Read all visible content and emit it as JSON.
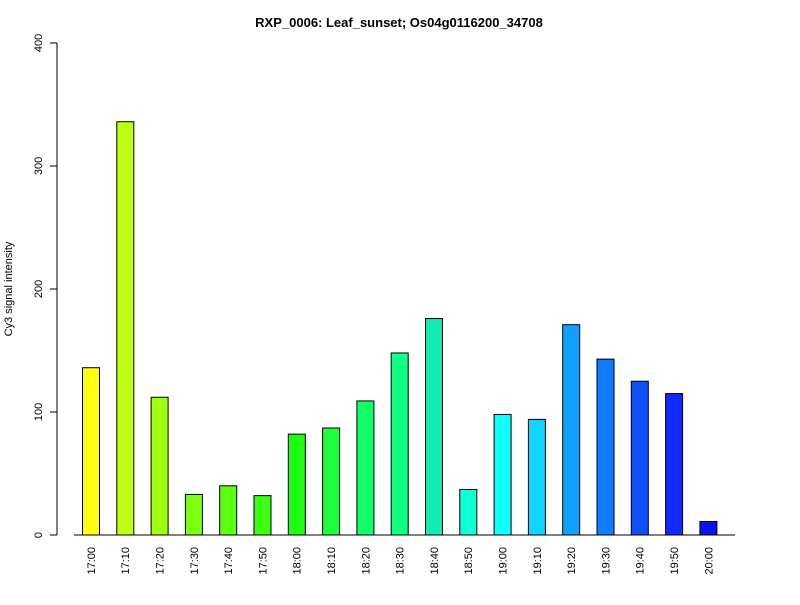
{
  "chart_data": {
    "type": "bar",
    "title": "RXP_0006: Leaf_sunset; Os04g0116200_34708",
    "xlabel": "",
    "ylabel": "Cy3 signal intensity",
    "ylim": [
      0,
      400
    ],
    "yticks": [
      0,
      100,
      200,
      300,
      400
    ],
    "grid": false,
    "legend": "none",
    "categories": [
      "17:00",
      "17:10",
      "17:20",
      "17:30",
      "17:40",
      "17:50",
      "18:00",
      "18:10",
      "18:20",
      "18:30",
      "18:40",
      "18:50",
      "19:00",
      "19:10",
      "19:20",
      "19:30",
      "19:40",
      "19:50",
      "20:00"
    ],
    "values": [
      136,
      336,
      112,
      33,
      40,
      32,
      82,
      87,
      109,
      148,
      176,
      37,
      98,
      94,
      171,
      143,
      125,
      115,
      11
    ],
    "colors": [
      "#ffff11",
      "#bfff11",
      "#a0ff11",
      "#7cff11",
      "#5cff11",
      "#3cff11",
      "#1cff11",
      "#1cff3a",
      "#11ff68",
      "#11ff82",
      "#11ecb0",
      "#11ffd4",
      "#11ffff",
      "#11d4ff",
      "#11a0ff",
      "#117cff",
      "#1150ff",
      "#1128ff",
      "#1111f0"
    ]
  }
}
